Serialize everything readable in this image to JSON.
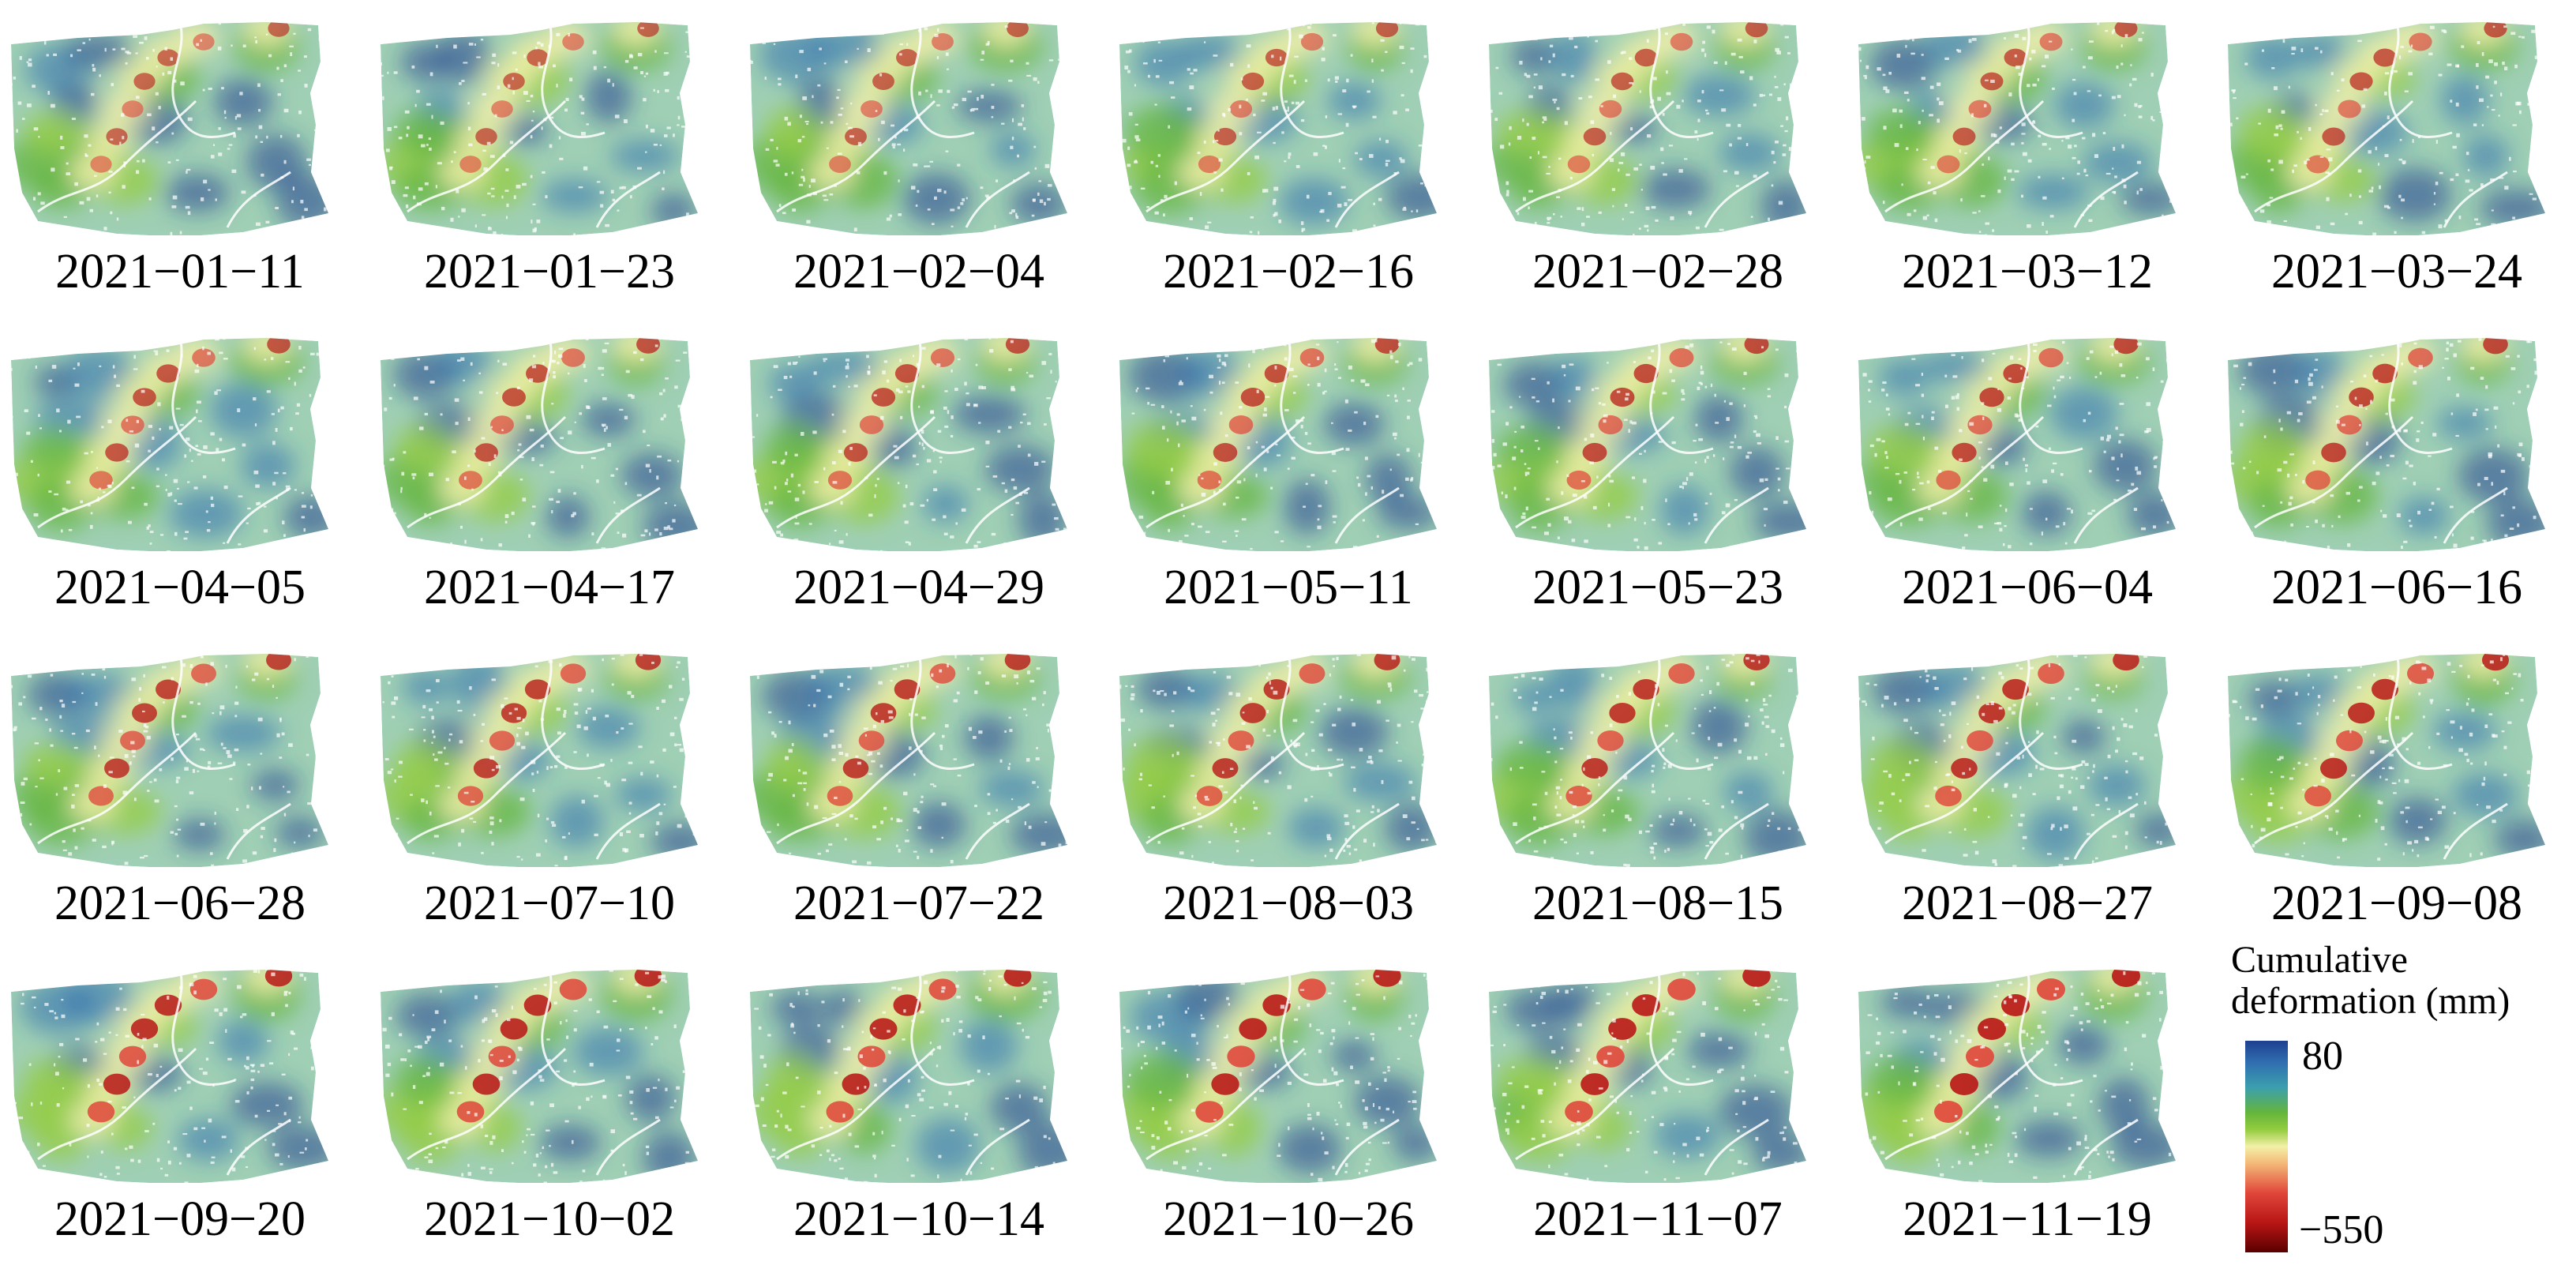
{
  "figure": {
    "dates": [
      "2021−01−11",
      "2021−01−23",
      "2021−02−04",
      "2021−02−16",
      "2021−02−28",
      "2021−03−12",
      "2021−03−24",
      "2021−04−05",
      "2021−04−17",
      "2021−04−29",
      "2021−05−11",
      "2021−05−23",
      "2021−06−04",
      "2021−06−16",
      "2021−06−28",
      "2021−07−10",
      "2021−07−22",
      "2021−08−03",
      "2021−08−15",
      "2021−08−27",
      "2021−09−08",
      "2021−09−20",
      "2021−10−02",
      "2021−10−14",
      "2021−10−26",
      "2021−11−07",
      "2021−11−19"
    ]
  },
  "legend": {
    "title_line1": "Cumulative",
    "title_line2": "deformation (mm)",
    "max": "80",
    "min": "−550",
    "colors": [
      "#1f3f8f",
      "#2f6db0",
      "#3b9fae",
      "#64b53c",
      "#93cc3e",
      "#f3f0a8",
      "#f4b878",
      "#e0463a",
      "#b81515",
      "#5a0000"
    ]
  }
}
